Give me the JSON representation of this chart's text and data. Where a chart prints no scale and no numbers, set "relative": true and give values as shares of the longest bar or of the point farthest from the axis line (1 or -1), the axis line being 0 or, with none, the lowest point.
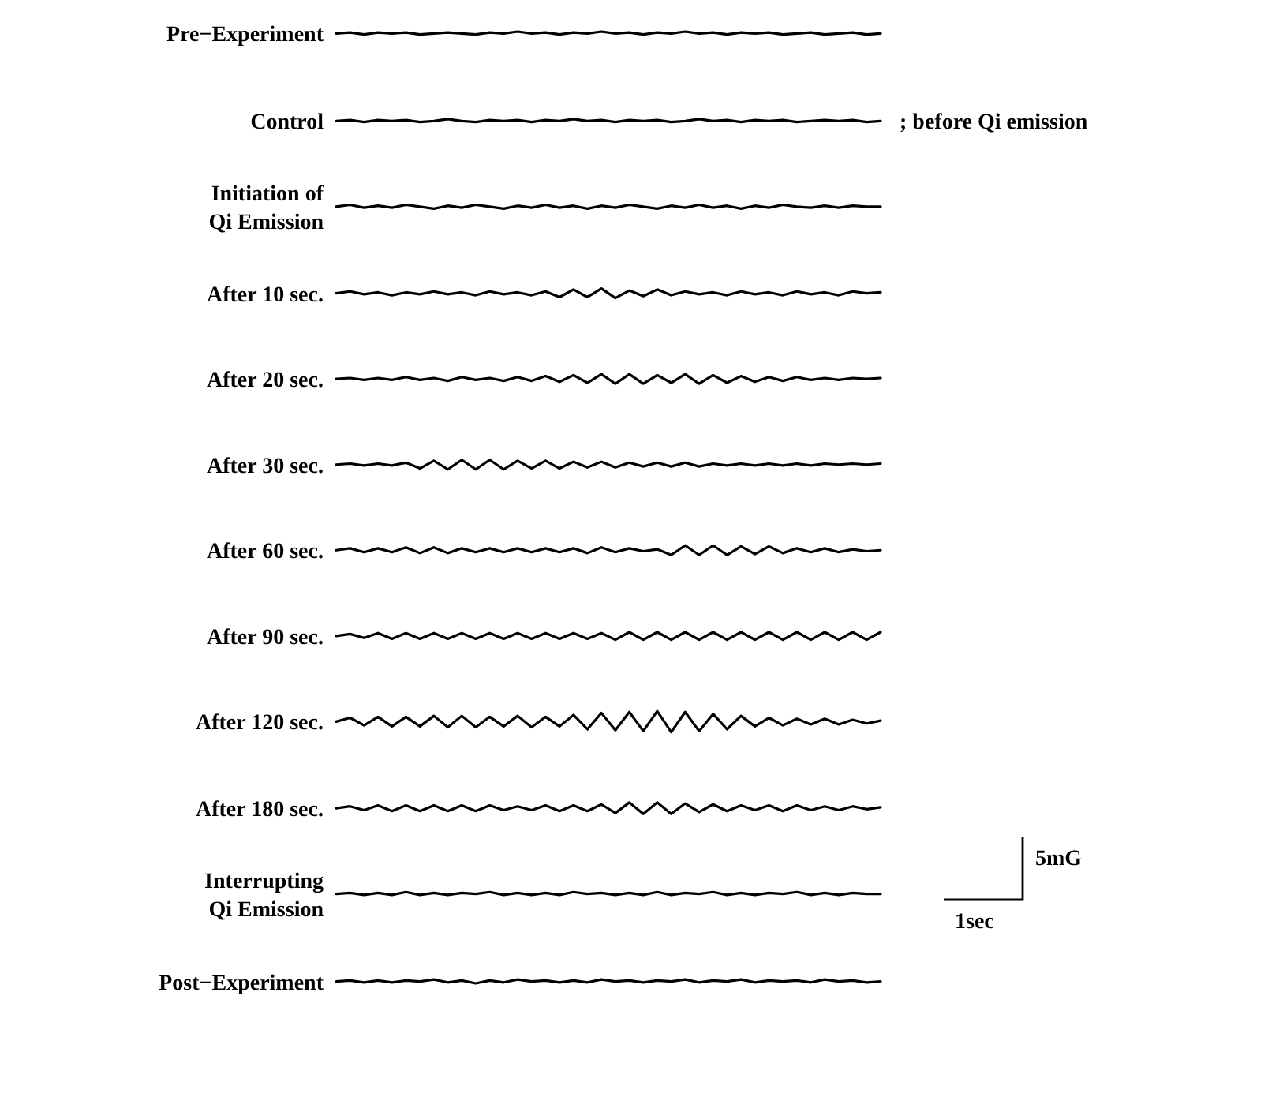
{
  "chart_data": {
    "type": "line",
    "relative": true,
    "line_style": "solid",
    "marker": "none",
    "categories": [
      null,
      null,
      null,
      null,
      null,
      null,
      null,
      null,
      null,
      null,
      null,
      null,
      null,
      null,
      null,
      null,
      null,
      null,
      null,
      null,
      null,
      null,
      null,
      null,
      null,
      null,
      null,
      null,
      null,
      null,
      null,
      null,
      null,
      null,
      null,
      null,
      null,
      null,
      null,
      null
    ],
    "annotations": [
      "; before Qi emission",
      "5mG",
      "1sec"
    ],
    "series": [
      {
        "name": "Pre−Experiment",
        "color": "#000000",
        "values": [
          0.998,
          0.999,
          0.997,
          0.999,
          0.998,
          0.999,
          0.997,
          0.998,
          0.999,
          0.998,
          0.997,
          0.999,
          0.998,
          1.0,
          0.998,
          0.999,
          0.997,
          0.999,
          0.998,
          1.0,
          0.998,
          0.999,
          0.997,
          0.999,
          0.998,
          1.0,
          0.998,
          0.999,
          0.997,
          0.999,
          0.998,
          0.999,
          0.997,
          0.998,
          0.999,
          0.997,
          0.998,
          0.999,
          0.997,
          0.998
        ]
      },
      {
        "name": "Control",
        "color": "#000000",
        "values": [
          0.906,
          0.907,
          0.905,
          0.907,
          0.906,
          0.907,
          0.905,
          0.906,
          0.908,
          0.906,
          0.905,
          0.907,
          0.906,
          0.907,
          0.905,
          0.907,
          0.906,
          0.908,
          0.906,
          0.907,
          0.905,
          0.907,
          0.906,
          0.907,
          0.905,
          0.906,
          0.908,
          0.906,
          0.907,
          0.905,
          0.907,
          0.906,
          0.907,
          0.905,
          0.906,
          0.907,
          0.906,
          0.907,
          0.905,
          0.906
        ]
      },
      {
        "name": "Initiation of Qi Emission",
        "color": "#000000",
        "values": [
          0.816,
          0.818,
          0.815,
          0.817,
          0.815,
          0.818,
          0.816,
          0.814,
          0.817,
          0.815,
          0.818,
          0.816,
          0.814,
          0.817,
          0.815,
          0.818,
          0.815,
          0.817,
          0.814,
          0.817,
          0.815,
          0.818,
          0.816,
          0.814,
          0.817,
          0.815,
          0.818,
          0.815,
          0.817,
          0.814,
          0.817,
          0.815,
          0.818,
          0.816,
          0.815,
          0.817,
          0.815,
          0.817,
          0.816,
          0.816
        ]
      },
      {
        "name": "After 10 sec.",
        "color": "#000000",
        "values": [
          0.725,
          0.727,
          0.724,
          0.726,
          0.723,
          0.726,
          0.724,
          0.727,
          0.724,
          0.726,
          0.723,
          0.727,
          0.724,
          0.726,
          0.723,
          0.727,
          0.721,
          0.729,
          0.721,
          0.73,
          0.72,
          0.728,
          0.722,
          0.729,
          0.723,
          0.727,
          0.724,
          0.726,
          0.723,
          0.727,
          0.724,
          0.726,
          0.723,
          0.727,
          0.724,
          0.726,
          0.723,
          0.727,
          0.725,
          0.726
        ]
      },
      {
        "name": "After 20 sec.",
        "color": "#000000",
        "values": [
          0.635,
          0.636,
          0.634,
          0.636,
          0.634,
          0.637,
          0.634,
          0.636,
          0.633,
          0.637,
          0.634,
          0.636,
          0.633,
          0.637,
          0.633,
          0.638,
          0.632,
          0.639,
          0.631,
          0.64,
          0.63,
          0.64,
          0.63,
          0.639,
          0.631,
          0.64,
          0.63,
          0.639,
          0.631,
          0.638,
          0.632,
          0.637,
          0.633,
          0.637,
          0.634,
          0.636,
          0.634,
          0.636,
          0.635,
          0.636
        ]
      },
      {
        "name": "After 30 sec.",
        "color": "#000000",
        "values": [
          0.545,
          0.546,
          0.544,
          0.546,
          0.544,
          0.547,
          0.541,
          0.549,
          0.54,
          0.55,
          0.54,
          0.55,
          0.54,
          0.549,
          0.541,
          0.549,
          0.541,
          0.548,
          0.542,
          0.548,
          0.542,
          0.547,
          0.543,
          0.547,
          0.543,
          0.547,
          0.543,
          0.546,
          0.544,
          0.546,
          0.544,
          0.546,
          0.544,
          0.546,
          0.544,
          0.546,
          0.545,
          0.546,
          0.545,
          0.546
        ]
      },
      {
        "name": "After 60 sec.",
        "color": "#000000",
        "values": [
          0.455,
          0.457,
          0.453,
          0.457,
          0.453,
          0.458,
          0.452,
          0.458,
          0.452,
          0.457,
          0.453,
          0.457,
          0.453,
          0.457,
          0.453,
          0.457,
          0.453,
          0.457,
          0.452,
          0.458,
          0.453,
          0.457,
          0.454,
          0.456,
          0.45,
          0.46,
          0.45,
          0.46,
          0.45,
          0.459,
          0.451,
          0.459,
          0.452,
          0.457,
          0.453,
          0.457,
          0.453,
          0.456,
          0.454,
          0.455
        ]
      },
      {
        "name": "After 90 sec.",
        "color": "#000000",
        "values": [
          0.365,
          0.367,
          0.363,
          0.368,
          0.362,
          0.368,
          0.362,
          0.368,
          0.362,
          0.368,
          0.362,
          0.368,
          0.362,
          0.368,
          0.362,
          0.368,
          0.362,
          0.368,
          0.362,
          0.368,
          0.361,
          0.369,
          0.361,
          0.369,
          0.361,
          0.369,
          0.361,
          0.369,
          0.361,
          0.369,
          0.361,
          0.369,
          0.361,
          0.369,
          0.361,
          0.369,
          0.361,
          0.369,
          0.361,
          0.369
        ]
      },
      {
        "name": "After 120 sec.",
        "color": "#000000",
        "values": [
          0.275,
          0.279,
          0.271,
          0.28,
          0.27,
          0.28,
          0.27,
          0.281,
          0.269,
          0.281,
          0.269,
          0.28,
          0.27,
          0.281,
          0.269,
          0.28,
          0.27,
          0.282,
          0.267,
          0.284,
          0.266,
          0.285,
          0.265,
          0.286,
          0.264,
          0.285,
          0.265,
          0.283,
          0.267,
          0.281,
          0.27,
          0.279,
          0.271,
          0.278,
          0.272,
          0.278,
          0.272,
          0.277,
          0.273,
          0.276
        ]
      },
      {
        "name": "After 180 sec.",
        "color": "#000000",
        "values": [
          0.184,
          0.186,
          0.182,
          0.187,
          0.181,
          0.187,
          0.181,
          0.187,
          0.181,
          0.187,
          0.181,
          0.187,
          0.182,
          0.186,
          0.182,
          0.187,
          0.181,
          0.187,
          0.181,
          0.188,
          0.179,
          0.19,
          0.178,
          0.19,
          0.178,
          0.189,
          0.18,
          0.188,
          0.181,
          0.187,
          0.182,
          0.187,
          0.181,
          0.187,
          0.182,
          0.186,
          0.182,
          0.186,
          0.183,
          0.185
        ]
      },
      {
        "name": "Interrupting Qi Emission",
        "color": "#000000",
        "values": [
          0.094,
          0.095,
          0.093,
          0.095,
          0.093,
          0.096,
          0.093,
          0.095,
          0.093,
          0.095,
          0.094,
          0.096,
          0.093,
          0.095,
          0.093,
          0.095,
          0.093,
          0.096,
          0.094,
          0.095,
          0.093,
          0.095,
          0.093,
          0.096,
          0.093,
          0.095,
          0.094,
          0.096,
          0.093,
          0.095,
          0.093,
          0.095,
          0.094,
          0.096,
          0.093,
          0.095,
          0.093,
          0.095,
          0.094,
          0.094
        ]
      },
      {
        "name": "Post−Experiment",
        "color": "#000000",
        "values": [
          0.002,
          0.003,
          0.001,
          0.003,
          0.001,
          0.003,
          0.002,
          0.004,
          0.001,
          0.003,
          0.0,
          0.003,
          0.001,
          0.004,
          0.002,
          0.003,
          0.001,
          0.003,
          0.001,
          0.004,
          0.002,
          0.003,
          0.001,
          0.003,
          0.002,
          0.004,
          0.001,
          0.003,
          0.002,
          0.004,
          0.001,
          0.003,
          0.002,
          0.003,
          0.001,
          0.004,
          0.002,
          0.003,
          0.001,
          0.002
        ]
      }
    ]
  }
}
